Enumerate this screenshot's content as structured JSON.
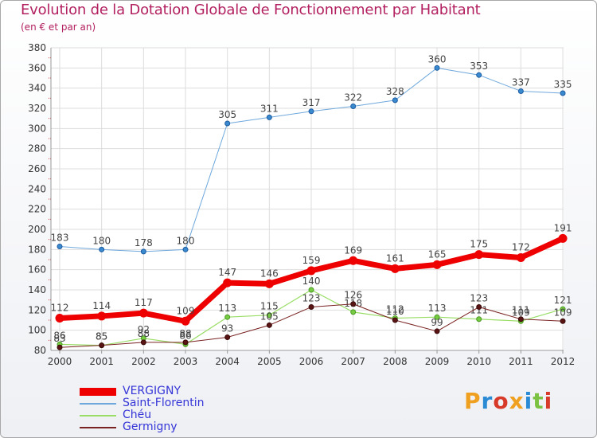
{
  "header": {
    "title": "Evolution de la Dotation Globale de Fonctionnement par Habitant",
    "subtitle": "(en € et par an)"
  },
  "logo": {
    "text": "Proxiti",
    "colors": [
      "#f0a020",
      "#2a8ad4",
      "#d83a2a",
      "#f0a020",
      "#2a8ad4",
      "#7cc242",
      "#d83a2a"
    ]
  },
  "chart_data": {
    "type": "line",
    "title": "Evolution de la Dotation Globale de Fonctionnement par Habitant",
    "subtitle": "(en € et par an)",
    "xlabel": "",
    "ylabel": "",
    "x": [
      "2000",
      "2001",
      "2002",
      "2003",
      "2004",
      "2005",
      "2006",
      "2007",
      "2008",
      "2009",
      "2010",
      "2011",
      "2012"
    ],
    "ylim": [
      80,
      380
    ],
    "yticks": [
      80,
      100,
      120,
      140,
      160,
      180,
      200,
      220,
      240,
      260,
      280,
      300,
      320,
      340,
      360,
      380
    ],
    "grid": true,
    "legend_position": "bottom-left",
    "series": [
      {
        "name": "VERGIGNY",
        "color": "#ee0000",
        "values": [
          112,
          114,
          117,
          109,
          147,
          146,
          159,
          169,
          161,
          165,
          175,
          172,
          191
        ],
        "labels": [
          "112",
          "114",
          "117",
          "109",
          "147",
          "146",
          "159",
          "169",
          "161",
          "165",
          "175",
          "172",
          "191"
        ]
      },
      {
        "name": "Saint-Florentin",
        "color": "#6fa8dc",
        "values": [
          183,
          180,
          178,
          180,
          305,
          311,
          317,
          322,
          328,
          360,
          353,
          337,
          335
        ],
        "labels": [
          "183",
          "180",
          "178",
          "180",
          "305",
          "311",
          "317",
          "322",
          "328",
          "360",
          "353",
          "337",
          "335"
        ]
      },
      {
        "name": "Chéu",
        "color": "#99dd66",
        "values": [
          86,
          85,
          92,
          86,
          113,
          115,
          140,
          118,
          112,
          113,
          111,
          109,
          121
        ],
        "labels": [
          "86",
          "85",
          "92",
          "86",
          "113",
          "115",
          "140",
          "118",
          "112",
          "113",
          "111",
          "109",
          "121"
        ]
      },
      {
        "name": "Germigny",
        "color": "#7a2222",
        "values": [
          83,
          85,
          88,
          88,
          93,
          105,
          123,
          126,
          110,
          99,
          123,
          111,
          109
        ],
        "labels": [
          "83",
          "85",
          "88",
          "88",
          "93",
          "105",
          "123",
          "126",
          "110",
          "99",
          "123",
          "111",
          "109"
        ]
      }
    ]
  }
}
